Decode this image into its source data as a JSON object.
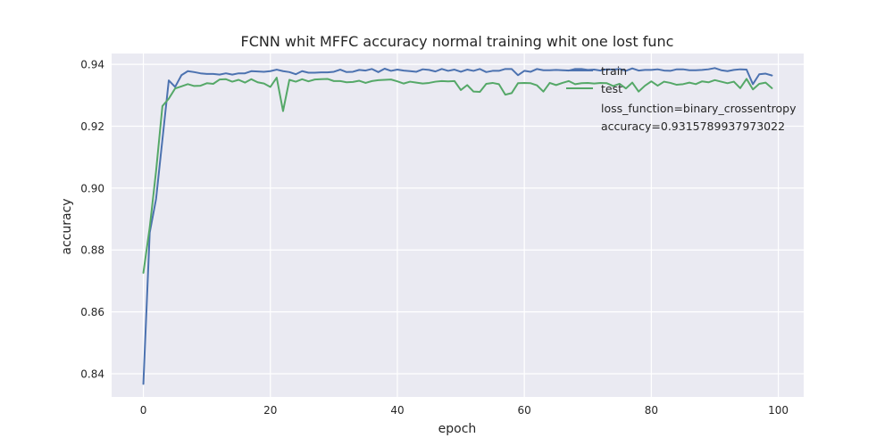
{
  "chart_data": {
    "type": "line",
    "title": "FCNN whit MFFC accuracy normal training whit one lost func",
    "xlabel": "epoch",
    "ylabel": "accuracy",
    "xlim": [
      -5,
      104
    ],
    "ylim": [
      0.8325,
      0.9435
    ],
    "xticks": [
      0,
      20,
      40,
      60,
      80,
      100
    ],
    "yticks": [
      0.84,
      0.86,
      0.88,
      0.9,
      0.92,
      0.94
    ],
    "xtick_labels": [
      "0",
      "20",
      "40",
      "60",
      "80",
      "100"
    ],
    "ytick_labels": [
      "0.84",
      "0.86",
      "0.88",
      "0.90",
      "0.92",
      "0.94"
    ],
    "grid": true,
    "legend_position": "top-right",
    "series": [
      {
        "name": "train",
        "color": "#4c72b0",
        "values": [
          0.8367,
          0.8856,
          0.8965,
          0.9157,
          0.9348,
          0.9327,
          0.9365,
          0.9378,
          0.9375,
          0.9371,
          0.9369,
          0.9369,
          0.9367,
          0.9371,
          0.9367,
          0.9371,
          0.9371,
          0.9378,
          0.9377,
          0.9376,
          0.9378,
          0.9383,
          0.9378,
          0.9375,
          0.9368,
          0.9378,
          0.9373,
          0.9373,
          0.9374,
          0.9374,
          0.9376,
          0.9383,
          0.9375,
          0.9376,
          0.9382,
          0.938,
          0.9385,
          0.9375,
          0.9386,
          0.9379,
          0.9383,
          0.938,
          0.9378,
          0.9376,
          0.9384,
          0.9382,
          0.9377,
          0.9385,
          0.9379,
          0.9383,
          0.9376,
          0.9383,
          0.9379,
          0.9385,
          0.9375,
          0.9379,
          0.9379,
          0.9385,
          0.9385,
          0.9365,
          0.9379,
          0.9376,
          0.9385,
          0.9381,
          0.9381,
          0.9382,
          0.9381,
          0.938,
          0.9385,
          0.9385,
          0.9382,
          0.9383,
          0.938,
          0.9384,
          0.9383,
          0.9385,
          0.9379,
          0.9387,
          0.938,
          0.9382,
          0.9382,
          0.9384,
          0.938,
          0.9379,
          0.9384,
          0.9384,
          0.9381,
          0.9381,
          0.9382,
          0.9384,
          0.9388,
          0.9381,
          0.9378,
          0.9382,
          0.9384,
          0.9383,
          0.9336,
          0.9368,
          0.937,
          0.9364
        ]
      },
      {
        "name": "test",
        "color": "#55a868",
        "values": [
          0.8726,
          0.8873,
          0.9055,
          0.9265,
          0.9289,
          0.9322,
          0.9329,
          0.9336,
          0.933,
          0.9331,
          0.9339,
          0.9337,
          0.9351,
          0.9352,
          0.9344,
          0.935,
          0.9341,
          0.9352,
          0.9342,
          0.9338,
          0.9327,
          0.9357,
          0.9249,
          0.935,
          0.9344,
          0.9352,
          0.9345,
          0.9351,
          0.9352,
          0.9353,
          0.9346,
          0.9346,
          0.9342,
          0.9343,
          0.9347,
          0.934,
          0.9346,
          0.9349,
          0.935,
          0.9351,
          0.9345,
          0.9338,
          0.9344,
          0.9341,
          0.9338,
          0.934,
          0.9344,
          0.9346,
          0.9345,
          0.9346,
          0.9317,
          0.9333,
          0.9312,
          0.9311,
          0.9337,
          0.934,
          0.9336,
          0.9302,
          0.9307,
          0.9339,
          0.934,
          0.9339,
          0.9332,
          0.9312,
          0.934,
          0.9333,
          0.934,
          0.9346,
          0.9336,
          0.9339,
          0.934,
          0.9338,
          0.934,
          0.9339,
          0.933,
          0.9337,
          0.9322,
          0.9341,
          0.9312,
          0.9331,
          0.9345,
          0.9331,
          0.9344,
          0.934,
          0.9334,
          0.9336,
          0.9341,
          0.9336,
          0.9345,
          0.9342,
          0.9349,
          0.9344,
          0.9339,
          0.9344,
          0.9323,
          0.9353,
          0.9319,
          0.9337,
          0.9341,
          0.9323
        ]
      }
    ],
    "annotations": [
      "loss_function=binary_crossentropy",
      "accuracy=0.9315789937973022"
    ]
  }
}
